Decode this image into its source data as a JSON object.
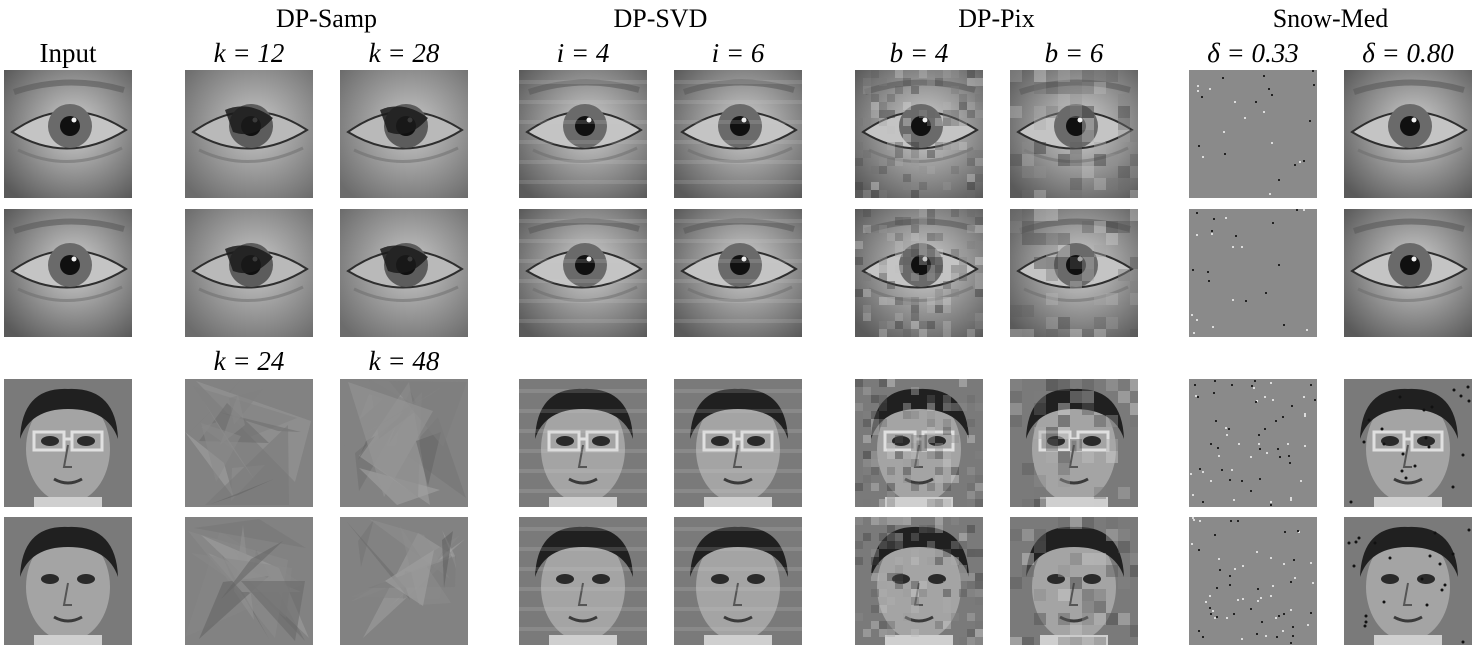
{
  "header": {
    "input_label": "Input",
    "groups": [
      "DP-Samp",
      "DP-SVD",
      "DP-Pix",
      "Snow-Med"
    ],
    "params_top": [
      "k = 12",
      "k = 28",
      "i = 4",
      "i = 6",
      "b = 4",
      "b = 6",
      "δ = 0.33",
      "δ = 0.80"
    ],
    "params_mid": [
      "k = 24",
      "k = 48"
    ]
  },
  "rows": [
    {
      "subject": "eye",
      "cells": [
        "input",
        "dp-samp",
        "dp-samp",
        "dp-svd",
        "dp-svd",
        "dp-pix",
        "dp-pix",
        "snow-med-low",
        "snow-med-high"
      ]
    },
    {
      "subject": "eye",
      "cells": [
        "input",
        "dp-samp",
        "dp-samp",
        "dp-svd",
        "dp-svd",
        "dp-pix",
        "dp-pix",
        "snow-med-low",
        "snow-med-high"
      ]
    },
    {
      "subject": "face",
      "cells": [
        "input",
        "dp-samp",
        "dp-samp",
        "dp-svd",
        "dp-svd",
        "dp-pix",
        "dp-pix",
        "snow-med-low",
        "snow-med-high"
      ]
    },
    {
      "subject": "face",
      "cells": [
        "input",
        "dp-samp",
        "dp-samp",
        "dp-svd",
        "dp-svd",
        "dp-pix",
        "dp-pix",
        "snow-med-low",
        "snow-med-high"
      ]
    }
  ]
}
